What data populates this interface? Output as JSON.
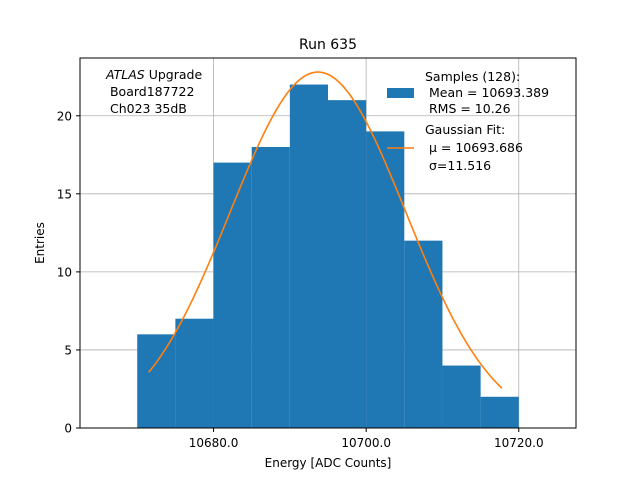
{
  "chart_data": {
    "type": "bar",
    "title": "Run 635",
    "xlabel": "Energy [ADC Counts]",
    "ylabel": "Entries",
    "xlim": [
      10662.5,
      10727.5
    ],
    "ylim": [
      0,
      23.7
    ],
    "xticks": [
      10680.0,
      10700.0,
      10720.0
    ],
    "xtick_labels": [
      "10680.0",
      "10700.0",
      "10720.0"
    ],
    "yticks": [
      0,
      5,
      10,
      15,
      20
    ],
    "ytick_labels": [
      "0",
      "5",
      "10",
      "15",
      "20"
    ],
    "grid": true,
    "bins": [
      {
        "x0": 10670,
        "x1": 10675,
        "count": 6
      },
      {
        "x0": 10675,
        "x1": 10680,
        "count": 7
      },
      {
        "x0": 10680,
        "x1": 10685,
        "count": 17
      },
      {
        "x0": 10685,
        "x1": 10690,
        "count": 18
      },
      {
        "x0": 10690,
        "x1": 10695,
        "count": 22
      },
      {
        "x0": 10695,
        "x1": 10700,
        "count": 21
      },
      {
        "x0": 10700,
        "x1": 10705,
        "count": 19
      },
      {
        "x0": 10705,
        "x1": 10710,
        "count": 12
      },
      {
        "x0": 10710,
        "x1": 10715,
        "count": 4
      },
      {
        "x0": 10715,
        "x1": 10720,
        "count": 2
      }
    ],
    "fit": {
      "mu": 10693.686,
      "sigma": 11.516,
      "amplitude": 22.8,
      "x_start": 10671.5,
      "x_end": 10717.8
    },
    "colors": {
      "hist": "#1f77b4",
      "fit": "#ff7f0e"
    },
    "annotation": {
      "line1_italic": "ATLAS",
      "line1_rest": " Upgrade",
      "line2": " Board187722",
      "line3": " Ch023 35dB"
    },
    "legend": {
      "placement": "top-right",
      "hist_lines": [
        "Samples (128):",
        " Mean = 10693.389",
        " RMS = 10.26"
      ],
      "fit_lines": [
        "Gaussian Fit:",
        " μ = 10693.686",
        "σ=11.516"
      ]
    }
  }
}
